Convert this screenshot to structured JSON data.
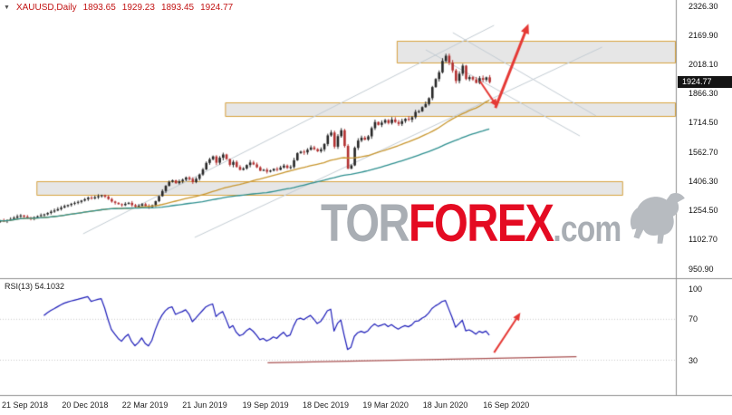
{
  "header": {
    "dropdown_icon": "▼",
    "symbol": "XAUUSD,Daily",
    "open": "1893.65",
    "high": "1929.23",
    "low": "1893.45",
    "close": "1924.77",
    "color": "#c21414"
  },
  "watermark": {
    "part1": "TOR",
    "part2": "FOREX",
    "part3": ".com",
    "gray": "#a9aeb4",
    "red": "#e40b22",
    "logo_color": "#b7bbc0"
  },
  "price_axis": {
    "ticks": [
      "2326.30",
      "2169.90",
      "2018.10",
      "1866.30",
      "1714.50",
      "1562.70",
      "1406.30",
      "1254.50",
      "1102.70",
      "950.90"
    ],
    "current": "1924.77"
  },
  "rsi_pane": {
    "label": "RSI(13) 54.1032",
    "ticks": [
      "100",
      "70",
      "30"
    ]
  },
  "time_axis": {
    "labels": [
      "21 Sep 2018",
      "20 Dec 2018",
      "22 Mar 2019",
      "21 Jun 2019",
      "19 Sep 2019",
      "18 Dec 2019",
      "19 Mar 2020",
      "18 Jun 2020",
      "16 Sep 2020"
    ]
  },
  "chart_data": [
    {
      "type": "candlestick",
      "title": "XAUUSD Daily with forecast",
      "x_labels": [
        "21 Sep 2018",
        "20 Dec 2018",
        "22 Mar 2019",
        "21 Jun 2019",
        "19 Sep 2019",
        "18 Dec 2019",
        "19 Mar 2020",
        "18 Jun 2020",
        "16 Sep 2020"
      ],
      "y_ticks": [
        2326.3,
        2169.9,
        2018.1,
        1866.3,
        1714.5,
        1562.7,
        1406.3,
        1254.5,
        1102.7,
        950.9
      ],
      "y_range": [
        950.9,
        2326.3
      ],
      "last_price": 1924.77,
      "data_width_fraction": 0.724,
      "closes": [
        1200,
        1197,
        1203,
        1208,
        1215,
        1222,
        1227,
        1221,
        1215,
        1211,
        1218,
        1223,
        1228,
        1233,
        1240,
        1247,
        1253,
        1260,
        1268,
        1276,
        1282,
        1288,
        1293,
        1298,
        1305,
        1312,
        1320,
        1316,
        1322,
        1328,
        1333,
        1325,
        1313,
        1300,
        1293,
        1286,
        1281,
        1288,
        1293,
        1281,
        1273,
        1278,
        1286,
        1276,
        1271,
        1280,
        1302,
        1328,
        1355,
        1382,
        1403,
        1411,
        1396,
        1406,
        1414,
        1426,
        1418,
        1402,
        1419,
        1441,
        1468,
        1502,
        1521,
        1536,
        1503,
        1529,
        1546,
        1522,
        1492,
        1507,
        1481,
        1466,
        1473,
        1491,
        1504,
        1494,
        1479,
        1461,
        1466,
        1456,
        1462,
        1471,
        1466,
        1478,
        1488,
        1476,
        1481,
        1516,
        1553,
        1561,
        1557,
        1571,
        1583,
        1574,
        1563,
        1573,
        1601,
        1646,
        1661,
        1587,
        1642,
        1673,
        1591,
        1472,
        1489,
        1581,
        1619,
        1634,
        1624,
        1641,
        1684,
        1716,
        1701,
        1713,
        1726,
        1711,
        1729,
        1716,
        1706,
        1721,
        1733,
        1728,
        1741,
        1769,
        1772,
        1794,
        1810,
        1841,
        1899,
        1941,
        1976,
        2036,
        2063,
        2027,
        1986,
        1931,
        1969,
        2011,
        1941,
        1951,
        1939,
        1921,
        1946,
        1937,
        1950,
        1924.77
      ],
      "moving_averages": [
        {
          "name": "ma-fast",
          "period": 40,
          "color": "#c8962e"
        },
        {
          "name": "ma-slow",
          "period": 80,
          "color": "#2d8f8f"
        }
      ],
      "zones": [
        {
          "x_from": 0.587,
          "x_to": 1.0,
          "price_from": 2022.8,
          "price_to": 2141.3
        },
        {
          "x_from": 0.333,
          "x_to": 1.0,
          "price_from": 1743.0,
          "price_to": 1818.8
        },
        {
          "x_from": 0.054,
          "x_to": 0.922,
          "price_from": 1330.4,
          "price_to": 1406.3
        }
      ],
      "zone_style": {
        "fill": "rgba(176,176,176,0.32)",
        "border": "#d8a33e"
      },
      "channel_lines": [
        {
          "from": [
            0.123,
            1131
          ],
          "to": [
            0.731,
            2222
          ]
        },
        {
          "from": [
            0.288,
            1112
          ],
          "to": [
            0.891,
            2108
          ]
        },
        {
          "from": [
            0.63,
            2094
          ],
          "to": [
            0.858,
            1643
          ]
        },
        {
          "from": [
            0.67,
            2184
          ],
          "to": [
            0.882,
            1748
          ]
        }
      ],
      "channel_color": "#c2cbd2",
      "arrows": [
        {
          "from": [
            0.71,
            1930
          ],
          "to": [
            0.736,
            1795
          ],
          "width": 2
        },
        {
          "from": [
            0.733,
            1790
          ],
          "to": [
            0.782,
            2230
          ],
          "width": 3
        }
      ],
      "arrow_color": "#e53935",
      "candle_up_color": "#262626",
      "candle_down_color": "#b23030"
    },
    {
      "type": "line",
      "title": "RSI(13)",
      "period": 13,
      "current_value": 54.1032,
      "y_range": [
        0,
        100
      ],
      "levels": [
        30,
        70
      ],
      "line_color": "#1c1cb8",
      "trendline": {
        "from": [
          0.396,
          27
        ],
        "to": [
          0.853,
          33
        ],
        "color": "#a85050"
      },
      "arrow": {
        "from": [
          0.731,
          37
        ],
        "to": [
          0.77,
          76
        ],
        "color": "#e53935"
      }
    }
  ]
}
